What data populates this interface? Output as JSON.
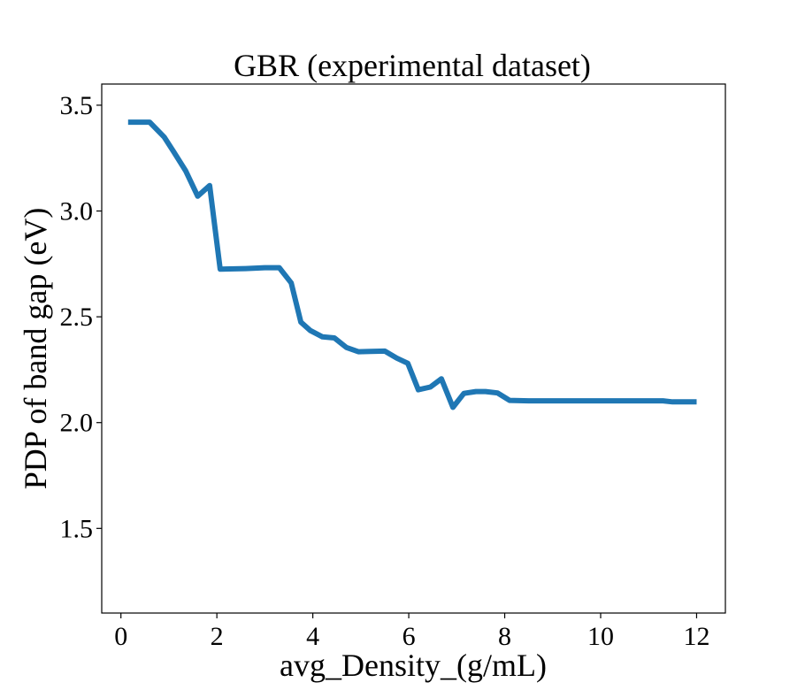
{
  "chart_data": {
    "type": "line",
    "title": "GBR (experimental dataset)",
    "xlabel": "avg_Density_(g/mL)",
    "ylabel": "PDP of band gap (eV)",
    "xlim": [
      -0.4,
      12.6
    ],
    "ylim": [
      1.1,
      3.6
    ],
    "xticks": [
      0,
      2,
      4,
      6,
      8,
      10,
      12
    ],
    "xtick_labels": [
      "0",
      "2",
      "4",
      "6",
      "8",
      "10",
      "12"
    ],
    "yticks": [
      1.5,
      2.0,
      2.5,
      3.0,
      3.5
    ],
    "ytick_labels": [
      "1.5",
      "2.0",
      "2.5",
      "3.0",
      "3.5"
    ],
    "grid": false,
    "line_color": "#1f77b4",
    "series": [
      {
        "x": [
          0.15,
          0.6,
          0.9,
          1.1,
          1.35,
          1.6,
          1.85,
          2.07,
          2.6,
          3.0,
          3.3,
          3.55,
          3.75,
          3.95,
          4.2,
          4.45,
          4.7,
          4.95,
          5.2,
          5.5,
          5.75,
          5.98,
          6.2,
          6.45,
          6.68,
          6.92,
          7.15,
          7.4,
          7.6,
          7.85,
          8.1,
          8.5,
          9.0,
          10.0,
          11.0,
          11.3,
          11.5,
          12.0
        ],
        "y": [
          3.42,
          3.42,
          3.35,
          3.28,
          3.19,
          3.07,
          3.12,
          2.725,
          2.728,
          2.732,
          2.732,
          2.66,
          2.475,
          2.435,
          2.405,
          2.4,
          2.355,
          2.335,
          2.336,
          2.338,
          2.305,
          2.28,
          2.155,
          2.168,
          2.207,
          2.072,
          2.138,
          2.147,
          2.147,
          2.14,
          2.105,
          2.103,
          2.103,
          2.103,
          2.103,
          2.103,
          2.098,
          2.098
        ]
      }
    ]
  }
}
